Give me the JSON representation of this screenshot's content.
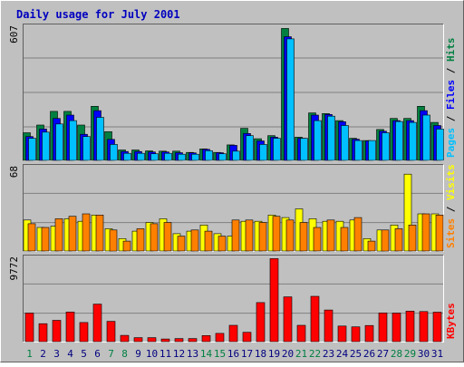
{
  "colors": {
    "background": "#c0c0c0",
    "plot": "#c0c0c0",
    "grid": "#808080",
    "title": "#0000c0",
    "hits": "#008040",
    "files": "#0000ff",
    "pages": "#00c0ff",
    "visits": "#ffff00",
    "sites": "#ff8000",
    "kbytes": "#ff0000",
    "weekend_day": "#008040",
    "weekday": "#000080"
  },
  "chart_data": [
    {
      "type": "bar",
      "title": "Daily usage for July 2001",
      "ymax_label": "607",
      "ylim": [
        0,
        607
      ],
      "legend": [
        "Pages",
        "Files",
        "Hits"
      ],
      "categories": [
        "1",
        "2",
        "3",
        "4",
        "5",
        "6",
        "7",
        "8",
        "9",
        "10",
        "11",
        "12",
        "13",
        "14",
        "15",
        "16",
        "17",
        "18",
        "19",
        "20",
        "21",
        "22",
        "23",
        "24",
        "25",
        "26",
        "27",
        "28",
        "29",
        "30",
        "31"
      ],
      "series": [
        {
          "name": "Hits",
          "values": [
            125,
            160,
            222,
            222,
            160,
            245,
            130,
            47,
            47,
            43,
            42,
            42,
            36,
            52,
            36,
            70,
            145,
            98,
            112,
            597,
            105,
            215,
            212,
            180,
            100,
            90,
            140,
            190,
            190,
            245,
            172
          ]
        },
        {
          "name": "Files",
          "values": [
            108,
            142,
            190,
            205,
            118,
            225,
            95,
            40,
            40,
            38,
            38,
            35,
            34,
            50,
            35,
            68,
            122,
            88,
            105,
            560,
            100,
            205,
            208,
            175,
            96,
            88,
            132,
            180,
            180,
            225,
            158
          ]
        },
        {
          "name": "Pages",
          "values": [
            100,
            128,
            165,
            180,
            108,
            195,
            72,
            32,
            32,
            30,
            32,
            28,
            28,
            44,
            30,
            42,
            112,
            72,
            100,
            550,
            100,
            180,
            200,
            158,
            90,
            90,
            125,
            176,
            172,
            205,
            142
          ]
        }
      ]
    },
    {
      "type": "bar",
      "ymax_label": "68",
      "ylim": [
        0,
        68
      ],
      "legend": [
        "Sites",
        "Visits"
      ],
      "categories": [
        "1",
        "2",
        "3",
        "4",
        "5",
        "6",
        "7",
        "8",
        "9",
        "10",
        "11",
        "12",
        "13",
        "14",
        "15",
        "16",
        "17",
        "18",
        "19",
        "20",
        "21",
        "22",
        "23",
        "24",
        "25",
        "26",
        "27",
        "28",
        "29",
        "30",
        "31"
      ],
      "series": [
        {
          "name": "Visits",
          "values": [
            25,
            19,
            20,
            26,
            24,
            29,
            18,
            10,
            16,
            23,
            26,
            14,
            16,
            21,
            14,
            12,
            24,
            24,
            29,
            27,
            34,
            26,
            24,
            24,
            25,
            10,
            17,
            21,
            62,
            30,
            30
          ]
        },
        {
          "name": "Sites",
          "values": [
            22,
            19,
            26,
            28,
            30,
            29,
            17,
            8,
            18,
            22,
            23,
            12,
            17,
            16,
            12,
            25,
            25,
            23,
            28,
            25,
            23,
            19,
            25,
            19,
            27,
            8,
            17,
            18,
            21,
            30,
            29
          ]
        }
      ]
    },
    {
      "type": "bar",
      "ymax_label": "9772",
      "ylim": [
        0,
        9772
      ],
      "legend": [
        "KBytes"
      ],
      "categories": [
        "1",
        "2",
        "3",
        "4",
        "5",
        "6",
        "7",
        "8",
        "9",
        "10",
        "11",
        "12",
        "13",
        "14",
        "15",
        "16",
        "17",
        "18",
        "19",
        "20",
        "21",
        "22",
        "23",
        "24",
        "25",
        "26",
        "27",
        "28",
        "29",
        "30",
        "31"
      ],
      "series": [
        {
          "name": "KBytes",
          "values": [
            3310,
            2076,
            2466,
            3440,
            2220,
            4350,
            2350,
            720,
            460,
            460,
            300,
            360,
            360,
            700,
            960,
            1890,
            1080,
            4530,
            9620,
            5190,
            1890,
            5250,
            3670,
            1810,
            1710,
            1870,
            3330,
            3310,
            3540,
            3490,
            3410
          ]
        }
      ]
    }
  ]
}
